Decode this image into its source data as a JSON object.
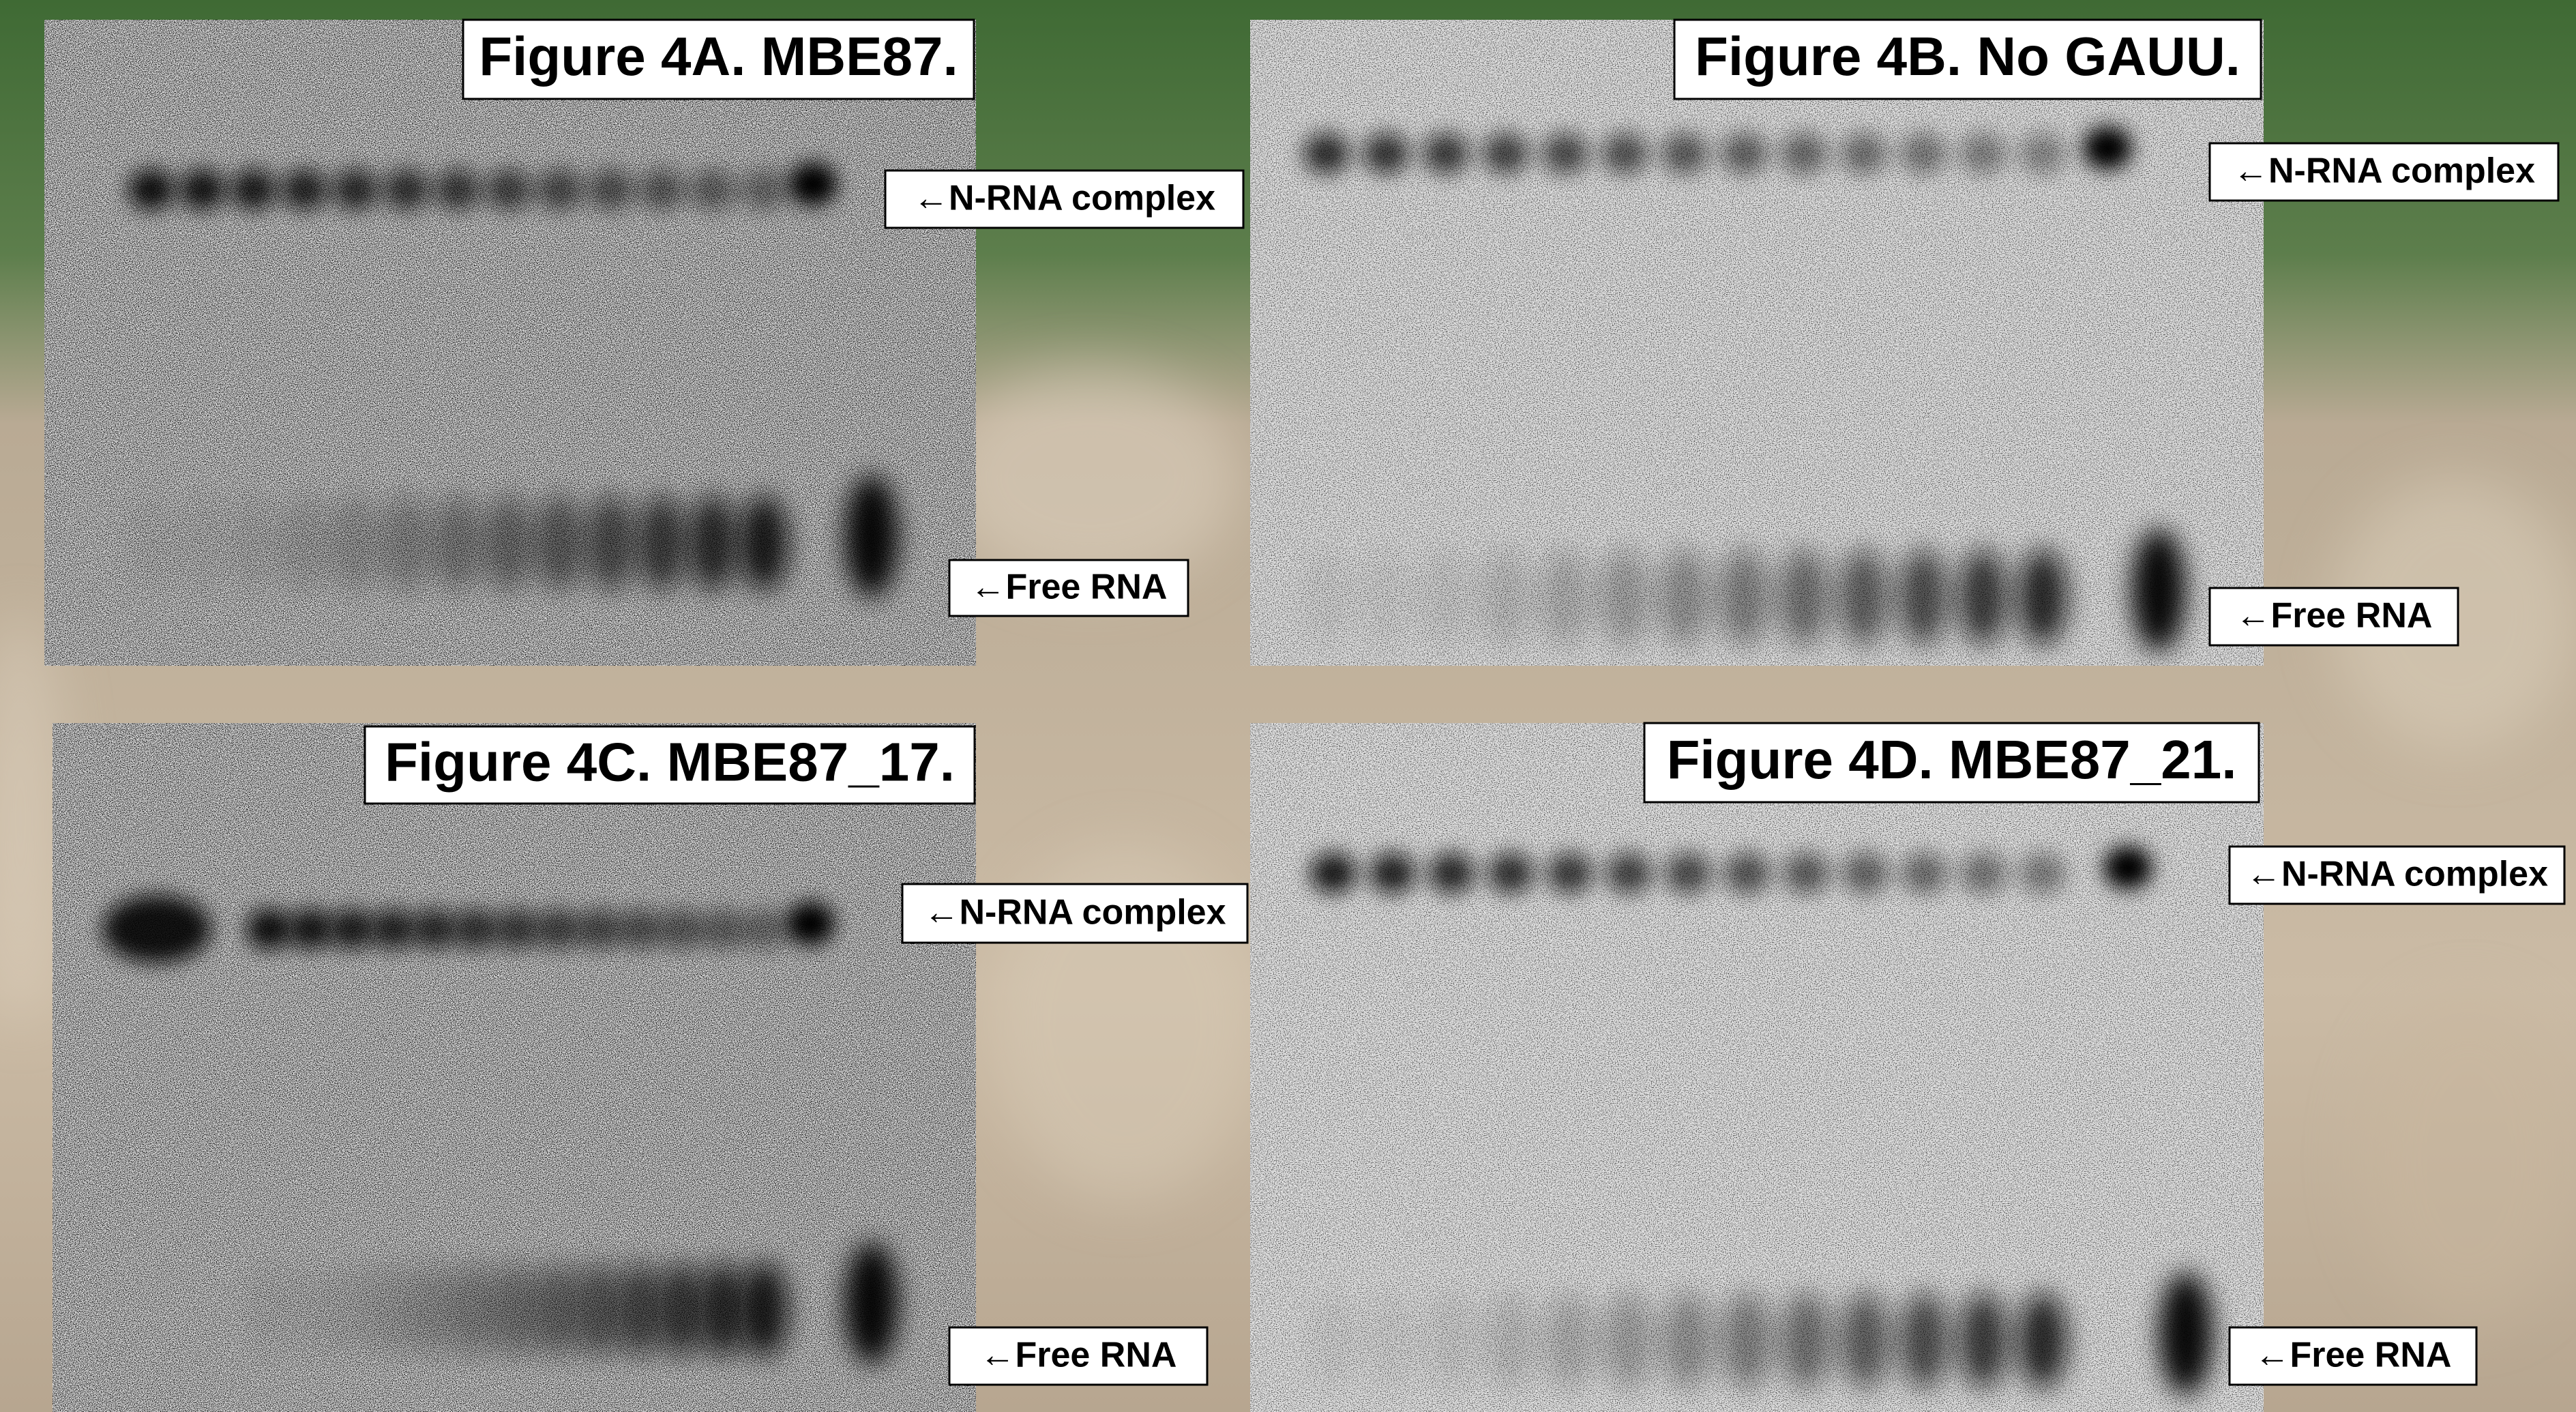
{
  "panels": [
    {
      "title": "Figure 4A. MBE87.",
      "complex_label": "←N-RNA complex",
      "free_label": "←Free RNA"
    },
    {
      "title": "Figure 4B. No GAUU.",
      "complex_label": "←N-RNA complex",
      "free_label": "←Free RNA"
    },
    {
      "title": "Figure 4C. MBE87_17.",
      "complex_label": "←N-RNA complex",
      "free_label": "←Free RNA"
    },
    {
      "title": "Figure 4D. MBE87_21.",
      "complex_label": "←N-RNA complex",
      "free_label": "←Free RNA"
    }
  ]
}
